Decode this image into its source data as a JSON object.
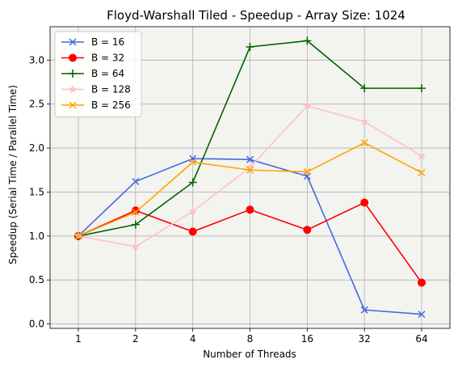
{
  "chart_data": {
    "type": "line",
    "title": "Floyd-Warshall Tiled - Speedup - Array Size: 1024",
    "xlabel": "Number of Threads",
    "ylabel": "Speedup (Serial Time / Parallel Time)",
    "categories": [
      "1",
      "2",
      "4",
      "8",
      "16",
      "32",
      "64"
    ],
    "ylim": [
      -0.05,
      3.38
    ],
    "yticks": [
      "0.0",
      "0.5",
      "1.0",
      "1.5",
      "2.0",
      "2.5",
      "3.0"
    ],
    "grid": true,
    "legend_position": "top-left",
    "plot_background": "#f3f4ef",
    "series": [
      {
        "name": "B = 16",
        "color": "#4169e1",
        "marker": "x",
        "values": [
          1.0,
          1.62,
          1.88,
          1.87,
          1.68,
          0.16,
          0.11
        ]
      },
      {
        "name": "B = 32",
        "color": "#ff0000",
        "marker": "o",
        "values": [
          1.0,
          1.29,
          1.05,
          1.3,
          1.07,
          1.38,
          0.47
        ]
      },
      {
        "name": "B = 64",
        "color": "#006400",
        "marker": "+",
        "values": [
          1.0,
          1.13,
          1.61,
          3.15,
          3.22,
          2.68,
          2.68
        ]
      },
      {
        "name": "B = 128",
        "color": "#ffc0cb",
        "marker": "*",
        "values": [
          1.0,
          0.88,
          1.28,
          1.78,
          2.48,
          2.3,
          1.91
        ]
      },
      {
        "name": "B = 256",
        "color": "#ffa500",
        "marker": "x",
        "values": [
          1.0,
          1.27,
          1.84,
          1.75,
          1.73,
          2.06,
          1.72
        ]
      }
    ]
  }
}
